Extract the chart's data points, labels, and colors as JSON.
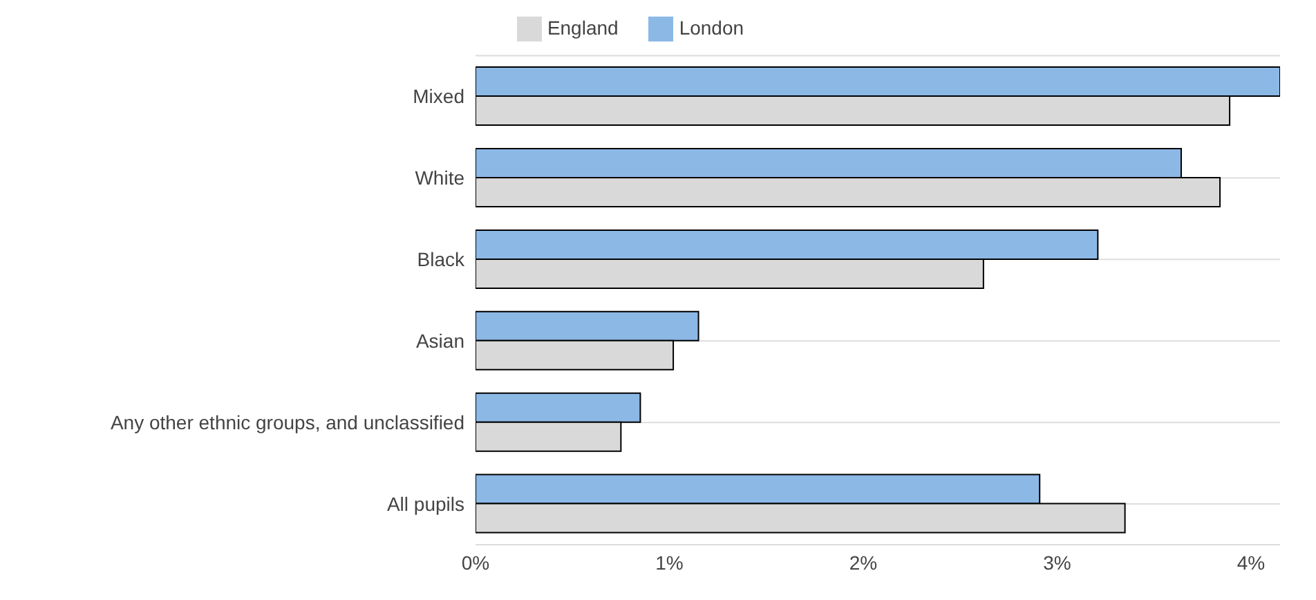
{
  "chart_data": {
    "type": "bar",
    "orientation": "horizontal",
    "categories": [
      "Mixed",
      "White",
      "Black",
      "Asian",
      "Any other ethnic groups, and unclassified",
      "All pupils"
    ],
    "series": [
      {
        "name": "London",
        "color": "#8cb8e6",
        "values": [
          4.15,
          3.64,
          3.21,
          1.15,
          0.85,
          2.91
        ]
      },
      {
        "name": "England",
        "color": "#d9d9d9",
        "values": [
          3.89,
          3.84,
          2.62,
          1.02,
          0.75,
          3.35
        ]
      }
    ],
    "xlim": [
      0,
      4.15
    ],
    "xticks": [
      {
        "value": 0,
        "label": "0%"
      },
      {
        "value": 1,
        "label": "1%"
      },
      {
        "value": 2,
        "label": "2%"
      },
      {
        "value": 3,
        "label": "3%"
      },
      {
        "value": 4,
        "label": "4%"
      }
    ],
    "grid": "y",
    "legend": "top"
  }
}
